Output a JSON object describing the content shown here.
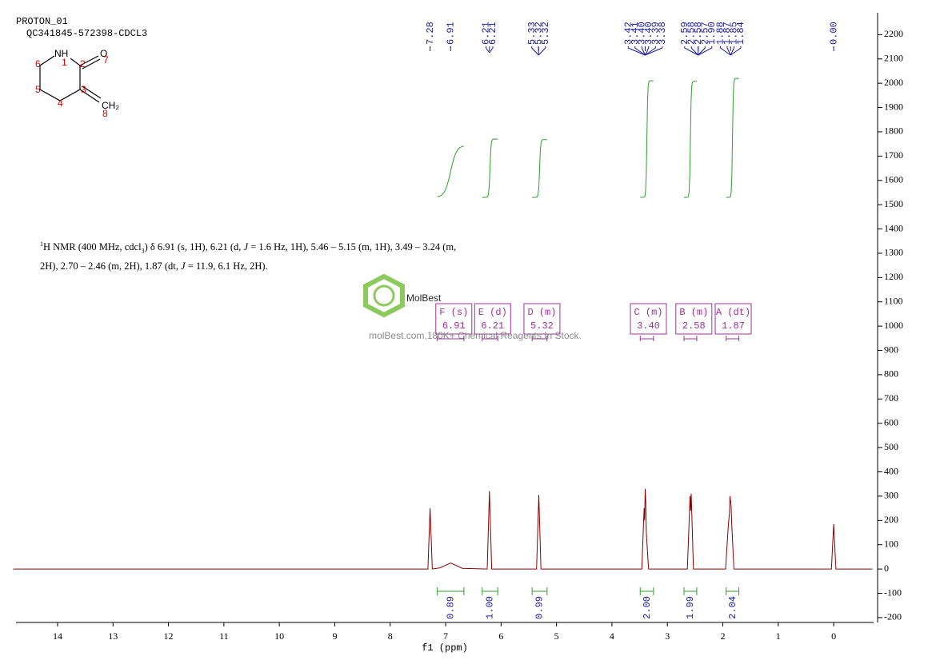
{
  "title": "PROTON_01",
  "subtitle": "QC341845-572398-CDCL3",
  "structure": {
    "labels": [
      "NH",
      "O",
      "CH₂"
    ],
    "atom_numbers": [
      "1",
      "2",
      "3",
      "4",
      "5",
      "6",
      "7",
      "8"
    ]
  },
  "description": {
    "lines": [
      [
        "1",
        "H NMR (400 MHz, cdcl",
        "3",
        ") δ 6.91 (s, 1H), 6.21 (d, ",
        "J",
        " = 1.6 Hz, 1H), 5.46 – 5.15 (m, 1H), 3.49 – 3.24 (m,"
      ],
      [
        "2H), 2.70 – 2.46 (m, 2H), 1.87 (dt, ",
        "J",
        " = 11.9, 6.1 Hz, 2H)."
      ]
    ]
  },
  "watermark": {
    "brand": "MolBest",
    "tagline": "molBest.com,180K+ Chemical Reagents,In Stock."
  },
  "chart_data": {
    "type": "line",
    "x_label": "f1 (ppm)",
    "xlim": [
      14.75,
      -0.72
    ],
    "xticks": [
      14,
      13,
      12,
      11,
      10,
      9,
      8,
      7,
      6,
      5,
      4,
      3,
      2,
      1,
      0
    ],
    "ylim": [
      -220,
      2290
    ],
    "yticks": [
      -200,
      -100,
      0,
      100,
      200,
      300,
      400,
      500,
      600,
      700,
      800,
      900,
      1000,
      1100,
      1200,
      1300,
      1400,
      1500,
      1600,
      1700,
      1800,
      1900,
      2000,
      2100,
      2200
    ],
    "series": [
      {
        "color": "#8b0000",
        "x": [
          14.8,
          7.32,
          7.28,
          7.24,
          7.1,
          6.91,
          6.7,
          6.25,
          6.21,
          6.17,
          5.36,
          5.32,
          5.28,
          3.46,
          3.42,
          3.41,
          3.4,
          3.39,
          3.38,
          3.34,
          2.64,
          2.59,
          2.58,
          2.57,
          2.53,
          1.95,
          1.9,
          1.88,
          1.87,
          1.85,
          1.84,
          1.8,
          0.04,
          0.0,
          -0.04,
          -0.7
        ],
        "values": [
          0,
          0,
          250,
          0,
          5,
          25,
          3,
          0,
          320,
          0,
          0,
          305,
          0,
          0,
          250,
          200,
          330,
          280,
          150,
          0,
          0,
          300,
          240,
          310,
          0,
          0,
          180,
          230,
          300,
          260,
          190,
          0,
          0,
          185,
          0,
          0
        ]
      }
    ],
    "peak_groups": [
      [
        "7.28"
      ],
      [
        "6.91"
      ],
      [
        "6.21",
        "6.21"
      ],
      [
        "5.33",
        "5.32",
        "5.32"
      ],
      [
        "3.42",
        "3.41",
        "3.40",
        "3.40",
        "3.39",
        "3.38"
      ],
      [
        "2.59",
        "2.58",
        "2.58",
        "2.57",
        "1.90"
      ],
      [
        "1.88",
        "1.87",
        "1.85",
        "1.84"
      ],
      [
        "0.00"
      ]
    ],
    "peak_color": "#1a1aa0",
    "integrals": {
      "color": "#2e9e2e",
      "values": [
        0.89,
        1,
        0.99,
        2,
        1.99,
        2.04
      ],
      "value_labels": [
        "0.89",
        "1.00",
        "0.99",
        "2.00",
        "1.99",
        "2.04"
      ],
      "ranges": [
        [
          7.15,
          6.67
        ],
        [
          6.34,
          6.06
        ],
        [
          5.44,
          5.17
        ],
        [
          3.49,
          3.25
        ],
        [
          2.7,
          2.47
        ],
        [
          1.94,
          1.71
        ]
      ]
    },
    "multiplets": {
      "color": "#a0309a",
      "labels": [
        "F (s)",
        "E (d)",
        "D (m)",
        "C (m)",
        "B (m)",
        "A (dt)"
      ],
      "shifts": [
        "6.91",
        "6.21",
        "5.32",
        "3.40",
        "2.58",
        "1.87"
      ]
    }
  }
}
